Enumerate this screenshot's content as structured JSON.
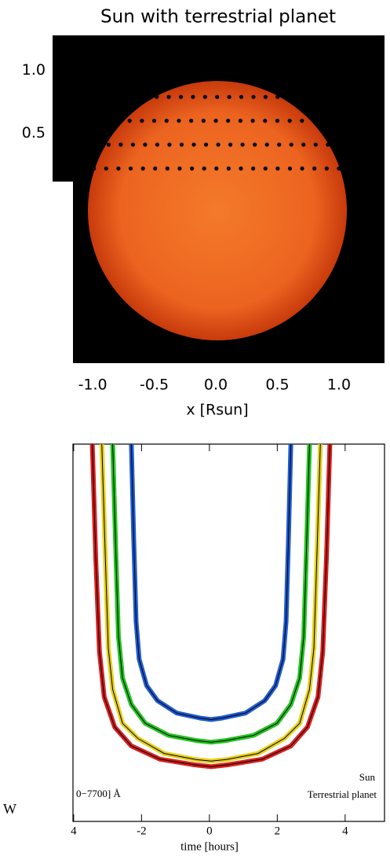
{
  "chart_data": [
    {
      "type": "image",
      "title": "Sun with terrestrial planet",
      "xlabel": "x [Rsun]",
      "xlim": [
        -1.16,
        1.37
      ],
      "ylim": [
        -1.33,
        1.28
      ],
      "xticks": [
        {
          "value": -1,
          "label": "-1.0"
        },
        -0.5,
        {
          "value": 0,
          "label": "0.0"
        },
        0.5,
        {
          "value": 1,
          "label": "1.0"
        }
      ],
      "yticks": [
        {
          "value": 1,
          "label": "1.0"
        },
        0.5
      ],
      "planet_tracks": [
        {
          "y": 0.79,
          "x_range": [
            -0.48,
            0.6
          ]
        },
        {
          "y": 0.6,
          "x_range": [
            -0.8,
            0.8
          ]
        },
        {
          "y": 0.41,
          "x_range": [
            -0.97,
            0.91
          ]
        },
        {
          "y": 0.22,
          "x_range": [
            -0.99,
            1.0
          ]
        }
      ]
    },
    {
      "type": "line",
      "xlabel": "time [hours]",
      "xlim": [
        -4.02,
        5.16
      ],
      "ylim": [
        0,
        1
      ],
      "xticks": [
        {
          "value": -4,
          "label": "4"
        },
        -2,
        0,
        2,
        4
      ],
      "annotations": [
        "0−7700] Å",
        "Sun",
        "Terrestrial planet",
        "W"
      ],
      "line_color": "#000000",
      "series": [
        {
          "color": "#d81e1e",
          "x": [
            -3.45,
            -3.35,
            -3.24,
            -3.1,
            -2.79,
            -2.3,
            -1.46,
            -0.44,
            0.05,
            0.54,
            1.56,
            2.4,
            2.89,
            3.2,
            3.34,
            3.45,
            3.55
          ],
          "values": [
            1,
            0.7,
            0.45,
            0.33,
            0.25,
            0.2,
            0.165,
            0.15,
            0.145,
            0.15,
            0.165,
            0.2,
            0.25,
            0.33,
            0.45,
            0.7,
            1
          ]
        },
        {
          "color": "#e8d21e",
          "x": [
            -3.17,
            -3.07,
            -2.98,
            -2.85,
            -2.56,
            -2.11,
            -1.33,
            -0.4,
            0.05,
            0.5,
            1.43,
            2.21,
            2.66,
            2.95,
            3.08,
            3.17,
            3.27
          ],
          "values": [
            1,
            0.71,
            0.46,
            0.35,
            0.26,
            0.22,
            0.18,
            0.164,
            0.16,
            0.164,
            0.18,
            0.22,
            0.26,
            0.35,
            0.46,
            0.71,
            1
          ]
        },
        {
          "color": "#22c41e",
          "x": [
            -2.85,
            -2.76,
            -2.68,
            -2.56,
            -2.3,
            -1.89,
            -1.2,
            -0.36,
            0.05,
            0.46,
            1.3,
            1.99,
            2.4,
            2.66,
            2.78,
            2.86,
            2.95
          ],
          "values": [
            1,
            0.72,
            0.49,
            0.38,
            0.31,
            0.26,
            0.228,
            0.214,
            0.21,
            0.214,
            0.228,
            0.26,
            0.31,
            0.38,
            0.49,
            0.72,
            1
          ]
        },
        {
          "color": "#1e5ad2",
          "x": [
            -2.3,
            -2.23,
            -2.16,
            -2.07,
            -1.85,
            -1.53,
            -0.96,
            -0.28,
            0.05,
            0.38,
            1.06,
            1.63,
            1.95,
            2.17,
            2.26,
            2.33,
            2.4
          ],
          "values": [
            1,
            0.75,
            0.53,
            0.43,
            0.36,
            0.32,
            0.287,
            0.274,
            0.27,
            0.274,
            0.287,
            0.32,
            0.36,
            0.43,
            0.53,
            0.75,
            1
          ]
        }
      ]
    }
  ]
}
